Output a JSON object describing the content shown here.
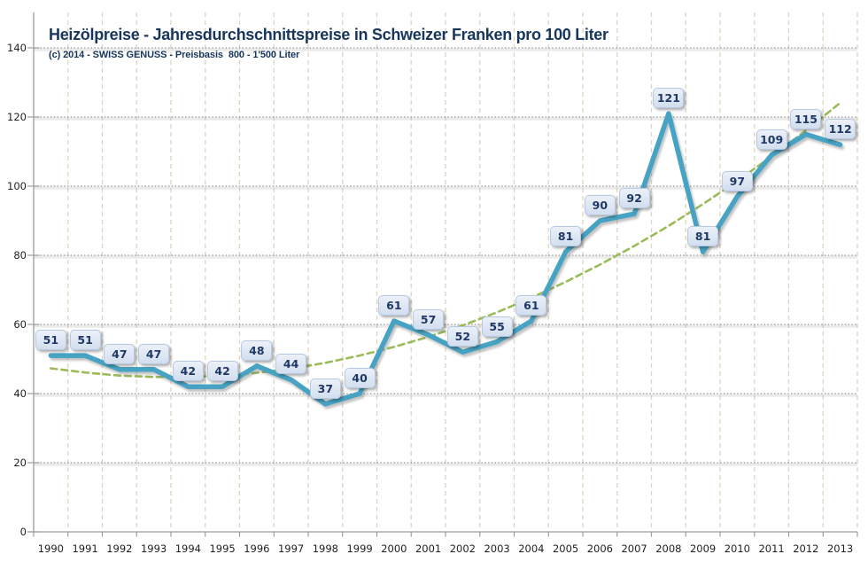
{
  "chart_data": {
    "type": "line",
    "title": "Heizölpreise - Jahresdurchschnittspreise in Schweizer Franken pro 100 Liter",
    "subtitle": "(c) 2014 - SWISS GENUSS - Preisbasis  800 - 1'500 Liter",
    "categories": [
      1990,
      1991,
      1992,
      1993,
      1994,
      1995,
      1996,
      1997,
      1998,
      1999,
      2000,
      2001,
      2002,
      2003,
      2004,
      2005,
      2006,
      2007,
      2008,
      2009,
      2010,
      2011,
      2012,
      2013
    ],
    "series": [
      {
        "id": "price",
        "values": [
          51,
          51,
          47,
          47,
          42,
          42,
          48,
          44,
          37,
          40,
          61,
          57,
          52,
          55,
          61,
          81,
          90,
          92,
          121,
          81,
          97,
          109,
          115,
          112
        ],
        "color": "#47A3C3",
        "style": "solid",
        "line_width": 5.5,
        "data_labels": true
      },
      {
        "id": "trend",
        "values": [
          47.3,
          46.1,
          45.2,
          44.8,
          44.8,
          45.2,
          46.0,
          47.2,
          48.9,
          51.0,
          53.5,
          56.4,
          59.7,
          63.5,
          67.7,
          72.3,
          77.3,
          82.7,
          88.5,
          94.8,
          101.5,
          108.6,
          116.1,
          124.1
        ],
        "color": "#9BBB59",
        "style": "dashed",
        "line_width": 2.6,
        "data_labels": false
      }
    ],
    "xlabel": "",
    "ylabel": "",
    "ylim": [
      0,
      150
    ],
    "y_ticks": [
      0,
      20,
      40,
      60,
      80,
      100,
      120,
      140
    ],
    "legend": "none",
    "grid": {
      "vertical": "dashed",
      "horizontal": "dotted"
    },
    "colors": {
      "title": "#17365D",
      "price_line": "#47A3C3",
      "trend_line": "#9BBB59",
      "vertical_grid": "#DBD6BE",
      "horizontal_grid": "#7F7F7F",
      "axis": "#9C9C9C",
      "tick_text": "#1f1f1f",
      "label_box_fill": "#DCE6F2",
      "label_box_border": "#B7C9E0",
      "label_text": "#1F3864"
    }
  }
}
